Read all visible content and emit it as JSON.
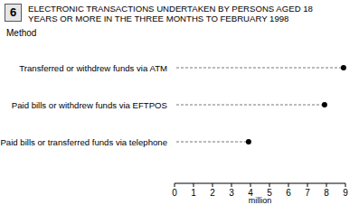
{
  "chart_data": {
    "type": "dot",
    "orientation": "horizontal",
    "figure_number": "6",
    "title": "ELECTRONIC TRANSACTIONS UNDERTAKEN BY PERSONS AGED 18 YEARS OR MORE IN THE THREE MONTHS TO FEBRUARY 1998",
    "y_label": "Method",
    "x_label": "million",
    "categories": [
      "Transferred or withdrew funds via ATM",
      "Paid bills or withdrew funds via EFTPOS",
      "Paid bills or transferred funds via telephone"
    ],
    "values": [
      8.9,
      7.9,
      3.9
    ],
    "color": "#000000",
    "xlim": [
      0,
      9
    ],
    "xticks": [
      0,
      1,
      2,
      3,
      4,
      5,
      6,
      7,
      8,
      9
    ],
    "grid": false
  }
}
